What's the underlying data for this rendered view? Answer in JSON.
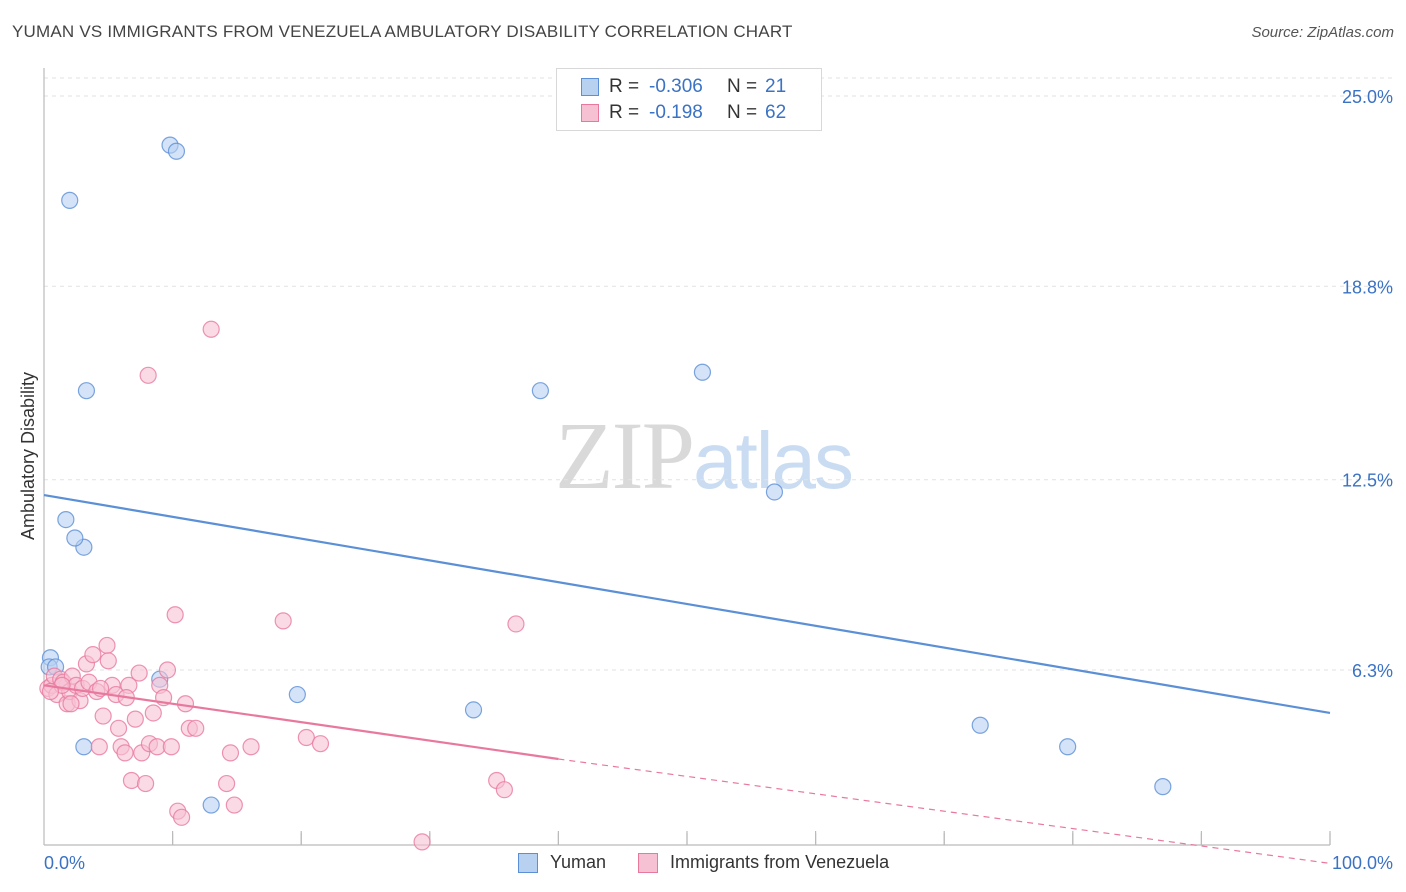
{
  "title": "YUMAN VS IMMIGRANTS FROM VENEZUELA AMBULATORY DISABILITY CORRELATION CHART",
  "source": "Source: ZipAtlas.com",
  "watermark": {
    "zip": "ZIP",
    "atlas": "atlas"
  },
  "legend_top": {
    "rows": [
      {
        "r_label": "R =",
        "r_value": "-0.306",
        "n_label": "N =",
        "n_value": "21"
      },
      {
        "r_label": "R =",
        "r_value": "-0.198",
        "n_label": "N =",
        "n_value": "62"
      }
    ]
  },
  "chart_data": {
    "type": "scatter",
    "title": "YUMAN VS IMMIGRANTS FROM VENEZUELA AMBULATORY DISABILITY CORRELATION CHART",
    "xlabel": "",
    "ylabel": "Ambulatory Disability",
    "xlim": [
      0,
      100
    ],
    "ylim": [
      0,
      26
    ],
    "x_tick_labels": [
      "0.0%",
      "100.0%"
    ],
    "y_ticks": [
      6.3,
      12.5,
      18.8,
      25.0
    ],
    "y_tick_labels": [
      "6.3%",
      "12.5%",
      "18.8%",
      "25.0%"
    ],
    "grid": true,
    "series": [
      {
        "name": "Yuman",
        "color": "#5b8fd6",
        "fill": "#b8d1f1",
        "r": -0.306,
        "n": 21,
        "trend": {
          "x0": 0,
          "y0": 12.0,
          "x1": 100,
          "y1": 4.9,
          "dashed_to": null
        },
        "points": [
          [
            0.5,
            6.7
          ],
          [
            0.4,
            6.4
          ],
          [
            2.0,
            21.6
          ],
          [
            3.3,
            15.4
          ],
          [
            3.1,
            10.3
          ],
          [
            1.7,
            11.2
          ],
          [
            2.4,
            10.6
          ],
          [
            3.1,
            3.8
          ],
          [
            9.8,
            23.4
          ],
          [
            10.3,
            23.2
          ],
          [
            9.0,
            6.0
          ],
          [
            13.0,
            1.9
          ],
          [
            19.7,
            5.5
          ],
          [
            33.4,
            5.0
          ],
          [
            38.6,
            15.4
          ],
          [
            51.2,
            16.0
          ],
          [
            56.8,
            12.1
          ],
          [
            72.8,
            4.5
          ],
          [
            79.6,
            3.8
          ],
          [
            87.0,
            2.5
          ],
          [
            0.9,
            6.4
          ]
        ]
      },
      {
        "name": "Immigrants from Venezuela",
        "color": "#e8799d",
        "fill": "#f6c2d3",
        "r": -0.198,
        "n": 62,
        "trend": {
          "x0": 0,
          "y0": 5.8,
          "x1": 40,
          "y1": 3.4,
          "dashed_to": [
            100,
            0.0
          ]
        },
        "points": [
          [
            0.3,
            5.7
          ],
          [
            0.6,
            5.8
          ],
          [
            0.8,
            6.1
          ],
          [
            1.0,
            5.5
          ],
          [
            1.3,
            6.0
          ],
          [
            1.5,
            5.9
          ],
          [
            1.8,
            5.2
          ],
          [
            2.0,
            5.6
          ],
          [
            2.2,
            6.1
          ],
          [
            2.5,
            5.8
          ],
          [
            2.8,
            5.3
          ],
          [
            3.0,
            5.7
          ],
          [
            3.3,
            6.5
          ],
          [
            3.5,
            5.9
          ],
          [
            3.8,
            6.8
          ],
          [
            4.1,
            5.6
          ],
          [
            4.3,
            3.8
          ],
          [
            4.6,
            4.8
          ],
          [
            4.9,
            7.1
          ],
          [
            5.0,
            6.6
          ],
          [
            5.3,
            5.8
          ],
          [
            5.6,
            5.5
          ],
          [
            5.8,
            4.4
          ],
          [
            6.0,
            3.8
          ],
          [
            6.3,
            3.6
          ],
          [
            6.6,
            5.8
          ],
          [
            6.8,
            2.7
          ],
          [
            7.1,
            4.7
          ],
          [
            7.4,
            6.2
          ],
          [
            7.6,
            3.6
          ],
          [
            7.9,
            2.6
          ],
          [
            8.2,
            3.9
          ],
          [
            8.5,
            4.9
          ],
          [
            8.8,
            3.8
          ],
          [
            9.0,
            5.8
          ],
          [
            9.3,
            5.4
          ],
          [
            9.6,
            6.3
          ],
          [
            9.9,
            3.8
          ],
          [
            10.2,
            8.1
          ],
          [
            10.4,
            1.7
          ],
          [
            10.7,
            1.5
          ],
          [
            11.0,
            5.2
          ],
          [
            11.3,
            4.4
          ],
          [
            11.8,
            4.4
          ],
          [
            13.0,
            17.4
          ],
          [
            8.1,
            15.9
          ],
          [
            14.2,
            2.6
          ],
          [
            14.5,
            3.6
          ],
          [
            14.8,
            1.9
          ],
          [
            16.1,
            3.8
          ],
          [
            18.6,
            7.9
          ],
          [
            20.4,
            4.1
          ],
          [
            21.5,
            3.9
          ],
          [
            29.4,
            0.7
          ],
          [
            35.2,
            2.7
          ],
          [
            35.8,
            2.4
          ],
          [
            36.7,
            7.8
          ],
          [
            1.4,
            5.8
          ],
          [
            2.1,
            5.2
          ],
          [
            4.4,
            5.7
          ],
          [
            6.4,
            5.4
          ],
          [
            0.5,
            5.6
          ]
        ]
      }
    ],
    "legend": [
      "Yuman",
      "Immigrants from Venezuela"
    ]
  }
}
